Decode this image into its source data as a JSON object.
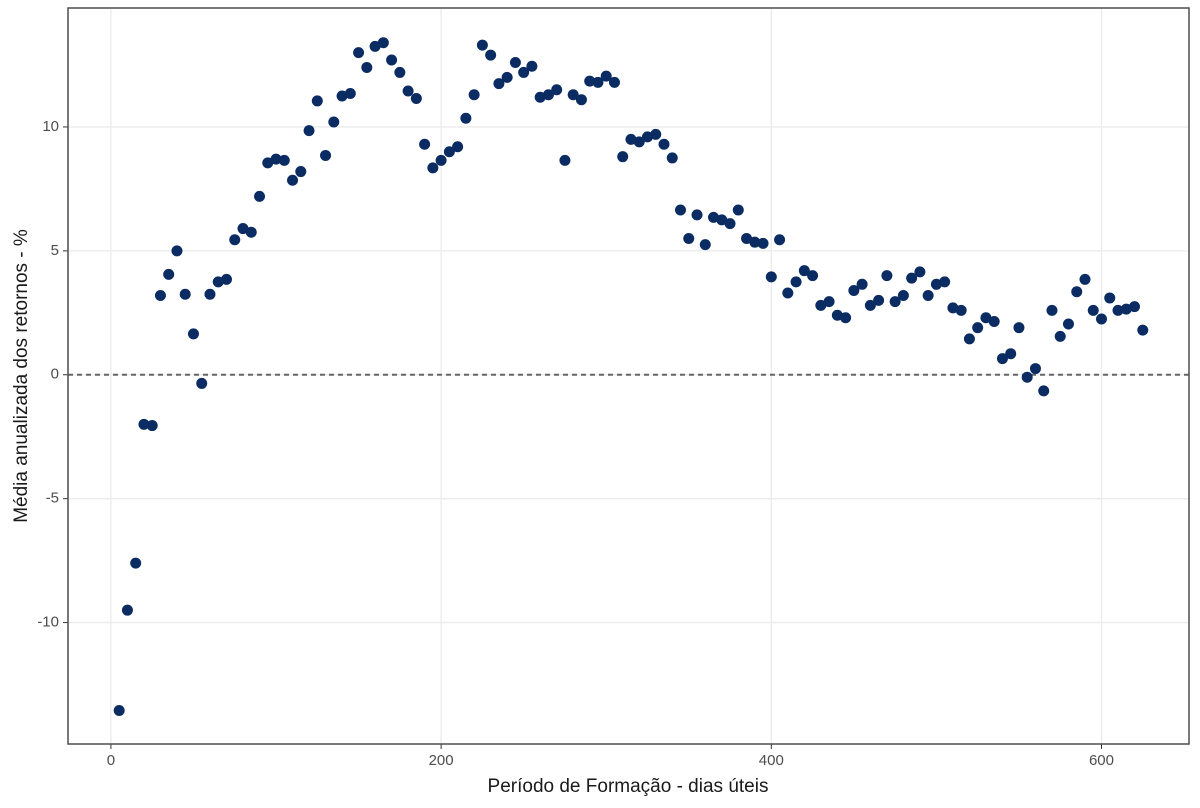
{
  "chart_data": {
    "type": "scatter",
    "x_label": "Período de Formação - dias úteis",
    "y_label": "Média anualizada dos retornos - %",
    "color": "#0b2c63",
    "grid": true,
    "hline": 0,
    "xlim": [
      -26,
      653
    ],
    "ylim": [
      -14.9,
      14.8
    ],
    "xticks": [
      0,
      200,
      400,
      600
    ],
    "yticks": [
      -10,
      -5,
      0,
      5,
      10
    ],
    "x": [
      5,
      10,
      15,
      20,
      25,
      30,
      35,
      40,
      45,
      50,
      55,
      60,
      65,
      70,
      75,
      80,
      85,
      90,
      95,
      100,
      105,
      110,
      115,
      120,
      125,
      130,
      135,
      140,
      145,
      150,
      155,
      160,
      165,
      170,
      175,
      180,
      185,
      190,
      195,
      200,
      205,
      210,
      215,
      220,
      225,
      230,
      235,
      240,
      245,
      250,
      255,
      260,
      265,
      270,
      275,
      280,
      285,
      290,
      295,
      300,
      305,
      310,
      315,
      320,
      325,
      330,
      335,
      340,
      345,
      350,
      355,
      360,
      365,
      370,
      375,
      380,
      385,
      390,
      395,
      400,
      405,
      410,
      415,
      420,
      425,
      430,
      435,
      440,
      445,
      450,
      455,
      460,
      465,
      470,
      475,
      480,
      485,
      490,
      495,
      500,
      505,
      510,
      515,
      520,
      525,
      530,
      535,
      540,
      545,
      550,
      555,
      560,
      565,
      570,
      575,
      580,
      585,
      590,
      595,
      600,
      605,
      610,
      615,
      620,
      625
    ],
    "values": [
      -13.55,
      -9.5,
      -7.6,
      -2.0,
      -2.05,
      3.2,
      4.05,
      5.0,
      3.25,
      1.65,
      -0.35,
      3.25,
      3.75,
      3.85,
      5.45,
      5.9,
      5.75,
      7.2,
      8.55,
      8.7,
      8.65,
      7.85,
      8.2,
      9.85,
      11.05,
      8.85,
      10.2,
      11.25,
      11.35,
      13.0,
      12.4,
      13.25,
      13.4,
      12.7,
      12.2,
      11.45,
      11.15,
      9.3,
      8.35,
      8.65,
      9.0,
      9.2,
      10.35,
      11.3,
      13.3,
      12.9,
      11.75,
      12.0,
      12.6,
      12.2,
      12.45,
      11.2,
      11.3,
      11.5,
      8.65,
      11.3,
      11.1,
      11.85,
      11.8,
      12.05,
      11.8,
      8.8,
      9.5,
      9.4,
      9.6,
      9.7,
      9.3,
      8.75,
      6.65,
      5.5,
      6.45,
      5.25,
      6.35,
      6.25,
      6.1,
      6.65,
      5.5,
      5.35,
      5.3,
      3.95,
      5.45,
      3.3,
      3.75,
      4.2,
      4.0,
      2.8,
      2.95,
      2.4,
      2.3,
      3.4,
      3.65,
      2.8,
      3.0,
      4.0,
      2.95,
      3.2,
      3.9,
      4.15,
      3.2,
      3.65,
      3.75,
      2.7,
      2.6,
      1.45,
      1.9,
      2.3,
      2.15,
      0.65,
      0.85,
      1.9,
      -0.1,
      0.25,
      -0.65,
      2.6,
      1.55,
      2.05,
      3.35,
      3.85,
      2.6,
      2.25,
      3.1,
      2.6,
      2.65,
      2.75,
      1.8
    ]
  }
}
